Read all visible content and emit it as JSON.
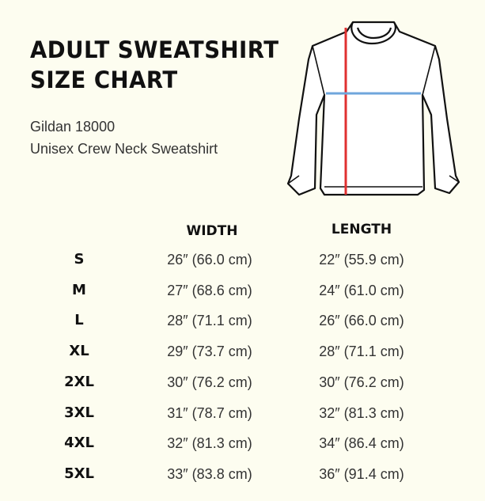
{
  "title": {
    "line1": "ADULT SWEATSHIRT",
    "line2": "SIZE CHART"
  },
  "subtitle": {
    "line1": "Gildan 18000",
    "line2": "Unisex Crew Neck Sweatshirt"
  },
  "colors": {
    "background": "#fdfdf0",
    "length_line": "#e03030",
    "width_line": "#6fa6dc"
  },
  "illustration": "sweatshirt-diagram",
  "table": {
    "headers": {
      "width": "WIDTH",
      "length": "LENGTH"
    },
    "rows": [
      {
        "size": "S",
        "width": "26″ (66.0 cm)",
        "length": "22″ (55.9 cm)"
      },
      {
        "size": "M",
        "width": "27″ (68.6 cm)",
        "length": "24″ (61.0 cm)"
      },
      {
        "size": "L",
        "width": "28″ (71.1 cm)",
        "length": "26″ (66.0 cm)"
      },
      {
        "size": "XL",
        "width": "29″ (73.7 cm)",
        "length": "28″ (71.1 cm)"
      },
      {
        "size": "2XL",
        "width": "30″ (76.2 cm)",
        "length": "30″ (76.2  cm)"
      },
      {
        "size": "3XL",
        "width": "31″ (78.7 cm)",
        "length": "32″ (81.3 cm)"
      },
      {
        "size": "4XL",
        "width": "32″ (81.3 cm)",
        "length": "34″ (86.4 cm)"
      },
      {
        "size": "5XL",
        "width": "33″ (83.8 cm)",
        "length": "36″ (91.4 cm)"
      }
    ]
  }
}
